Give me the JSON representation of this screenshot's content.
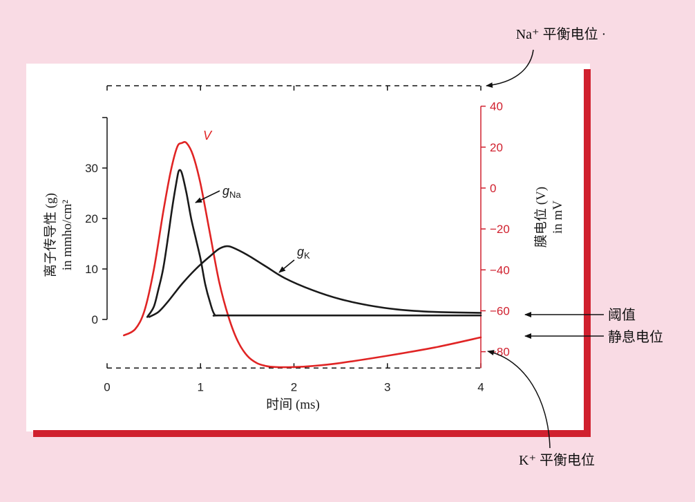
{
  "chart_data": {
    "type": "line",
    "xlabel": "时间 (ms)",
    "x_ticks": [
      0,
      1,
      2,
      3,
      4
    ],
    "xlim": [
      0,
      4
    ],
    "left_axis": {
      "label_line1": "离子传导性 (g)",
      "label_line2": "in mmho/cm²",
      "ylim": [
        0,
        40
      ],
      "ticks": [
        0,
        10,
        20,
        30
      ]
    },
    "right_axis": {
      "label_line1": "膜电位 (V)",
      "label_line2": "in mV",
      "ylim": [
        -95,
        50
      ],
      "ticks": [
        40,
        20,
        0,
        -20,
        -40,
        -60,
        -80
      ]
    },
    "series": [
      {
        "name": "V",
        "axis": "right",
        "color": "#e02424",
        "points": [
          [
            0.18,
            -72
          ],
          [
            0.3,
            -69
          ],
          [
            0.4,
            -60
          ],
          [
            0.5,
            -40
          ],
          [
            0.6,
            -12
          ],
          [
            0.68,
            8
          ],
          [
            0.75,
            20
          ],
          [
            0.8,
            22
          ],
          [
            0.85,
            22
          ],
          [
            0.92,
            16
          ],
          [
            1.0,
            2
          ],
          [
            1.1,
            -22
          ],
          [
            1.2,
            -46
          ],
          [
            1.3,
            -63
          ],
          [
            1.4,
            -75
          ],
          [
            1.5,
            -82
          ],
          [
            1.6,
            -85.5
          ],
          [
            1.7,
            -87
          ],
          [
            1.8,
            -87.5
          ],
          [
            2.0,
            -87.5
          ],
          [
            2.2,
            -87
          ],
          [
            2.5,
            -85.5
          ],
          [
            3.0,
            -82
          ],
          [
            3.5,
            -78
          ],
          [
            4.0,
            -73
          ]
        ]
      },
      {
        "name": "g_Na",
        "axis": "left",
        "color": "#1a1a1a",
        "points": [
          [
            0.43,
            0.5
          ],
          [
            0.5,
            2.5
          ],
          [
            0.55,
            6
          ],
          [
            0.6,
            10
          ],
          [
            0.65,
            16
          ],
          [
            0.7,
            22.5
          ],
          [
            0.75,
            28
          ],
          [
            0.77,
            29.5
          ],
          [
            0.8,
            29
          ],
          [
            0.85,
            25
          ],
          [
            0.9,
            20
          ],
          [
            0.95,
            16
          ],
          [
            1.0,
            12
          ],
          [
            1.05,
            7
          ],
          [
            1.1,
            3.5
          ],
          [
            1.15,
            1
          ],
          [
            1.22,
            0.8
          ],
          [
            2.0,
            0.8
          ],
          [
            3.0,
            0.8
          ],
          [
            4.0,
            0.8
          ]
        ]
      },
      {
        "name": "g_K",
        "axis": "left",
        "color": "#1a1a1a",
        "points": [
          [
            0.45,
            0.5
          ],
          [
            0.55,
            1.5
          ],
          [
            0.65,
            3.5
          ],
          [
            0.8,
            7
          ],
          [
            0.95,
            10
          ],
          [
            1.1,
            12.5
          ],
          [
            1.2,
            14
          ],
          [
            1.28,
            14.5
          ],
          [
            1.35,
            14.2
          ],
          [
            1.5,
            12.8
          ],
          [
            1.7,
            10.5
          ],
          [
            1.9,
            8.2
          ],
          [
            2.2,
            5.8
          ],
          [
            2.5,
            4
          ],
          [
            2.8,
            2.8
          ],
          [
            3.1,
            2
          ],
          [
            3.5,
            1.5
          ],
          [
            4.0,
            1.3
          ]
        ]
      }
    ],
    "series_labels": {
      "V": "V",
      "gNa_main": "g",
      "gNa_sub": "Na",
      "gK_main": "g",
      "gK_sub": "K"
    },
    "annotations": {
      "na_eq": "Na⁺ 平衡电位 ·",
      "k_eq": "K⁺ 平衡电位",
      "threshold": "阈值",
      "resting": "静息电位"
    },
    "reference_levels": {
      "na_equilibrium_mV": 50,
      "k_equilibrium_mV": -88,
      "threshold_mV": -70,
      "resting_mV": -80
    }
  }
}
